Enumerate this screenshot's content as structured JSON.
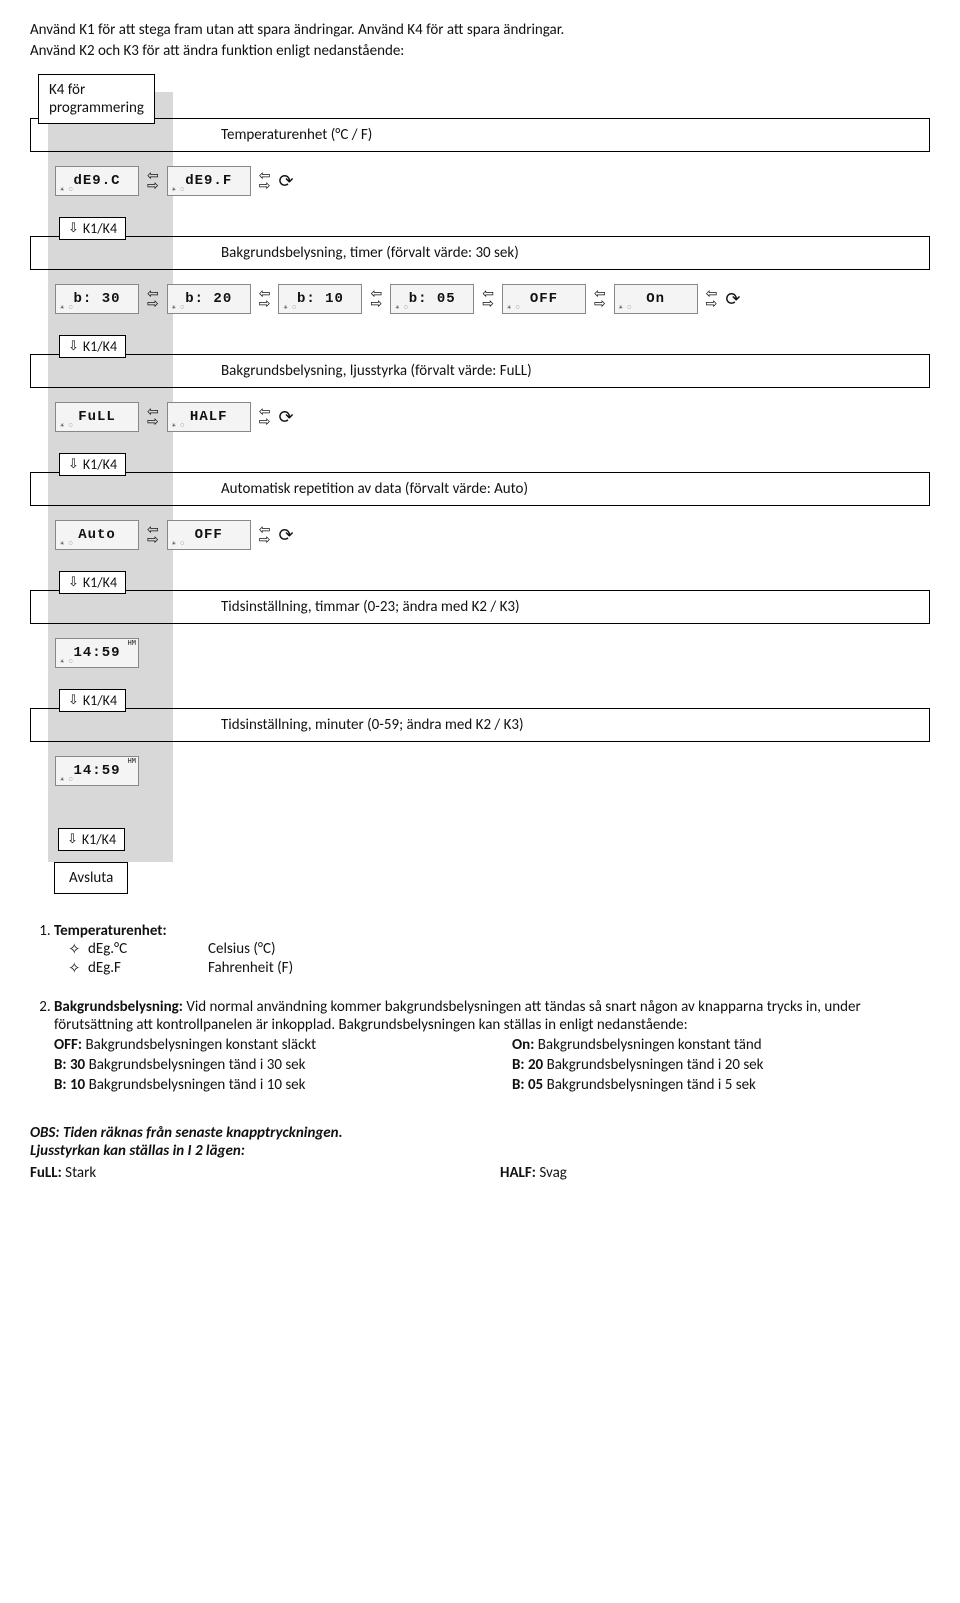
{
  "intro": {
    "line1": "Använd K1 för att stega fram utan att spara ändringar. Använd K4 för att spara ändringar.",
    "line2": "Använd K2 och K3 för att ändra funktion enligt nedanstående:"
  },
  "k4box": {
    "line1": "K4 för",
    "line2": "programmering"
  },
  "steps": [
    {
      "title": "Temperaturenhet (°C / F)",
      "lcd": [
        "dE9.C",
        "dE9.F"
      ],
      "label": "K1/K4",
      "arrows": "loop2"
    },
    {
      "title": "Bakgrundsbelysning, timer (förvalt värde: 30 sek)",
      "lcd": [
        "b: 30",
        "b: 20",
        "b: 10",
        "b: 05",
        "OFF",
        "On"
      ],
      "label": "K1/K4",
      "arrows": "loop6"
    },
    {
      "title": "Bakgrundsbelysning, ljusstyrka (förvalt värde: FuLL)",
      "lcd": [
        "FuLL",
        "HALF"
      ],
      "label": "K1/K4",
      "arrows": "loop2"
    },
    {
      "title": "Automatisk repetition av data (förvalt värde: Auto)",
      "lcd": [
        "Auto",
        "OFF"
      ],
      "label": "K1/K4",
      "arrows": "loop2"
    },
    {
      "title": "Tidsinställning, timmar (0-23; ändra med K2 / K3)",
      "lcd": [
        "14:59"
      ],
      "sub": "HM",
      "label": "K1/K4",
      "arrows": "none"
    },
    {
      "title": "Tidsinställning, minuter (0-59; ändra med K2 / K3)",
      "lcd": [
        "14:59"
      ],
      "sub": "HM",
      "label": "K1/K4",
      "arrows": "none"
    }
  ],
  "lastLabel": "K1/K4",
  "avsluta": "Avsluta",
  "section1": {
    "title": "Temperaturenhet:",
    "items": [
      {
        "k": "dEg.°C",
        "v": "Celsius (°C)"
      },
      {
        "k": "dEg.F",
        "v": "Fahrenheit (F)"
      }
    ]
  },
  "section2": {
    "title": "Bakgrundsbelysning:",
    "para": "Vid normal användning kommer bakgrundsbelysningen att tändas så snart någon av knapparna trycks in, under förutsättning att kontrollpanelen är inkopplad. Bakgrundsbelysningen kan ställas in enligt nedanstående:",
    "left": [
      {
        "b": "OFF:",
        "t": "Bakgrundsbelysningen konstant släckt"
      },
      {
        "b": "B: 30",
        "t": "Bakgrundsbelysningen tänd i 30 sek"
      },
      {
        "b": "B: 10",
        "t": "Bakgrundsbelysningen tänd i 10 sek"
      }
    ],
    "right": [
      {
        "b": "On:",
        "t": "Bakgrundsbelysningen konstant tänd"
      },
      {
        "b": "B: 20",
        "t": "Bakgrundsbelysningen tänd i 20 sek"
      },
      {
        "b": "B: 05",
        "t": "Bakgrundsbelysningen tänd i 5 sek"
      }
    ]
  },
  "obs": {
    "line1": "OBS: Tiden räknas från senaste knapptryckningen.",
    "line2": "Ljusstyrkan kan ställas in I 2 lägen:",
    "left": {
      "b": "FuLL:",
      "t": "Stark"
    },
    "right": {
      "b": "HALF:",
      "t": "Svag"
    }
  }
}
